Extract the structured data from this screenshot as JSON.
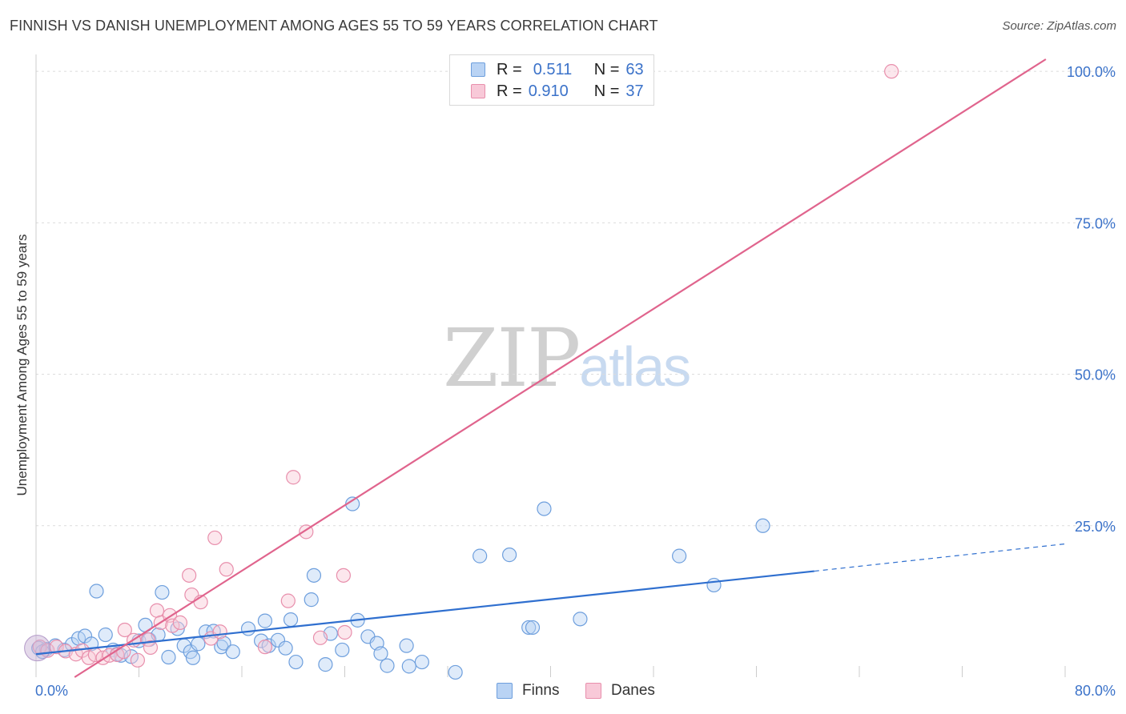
{
  "title": "FINNISH VS DANISH UNEMPLOYMENT AMONG AGES 55 TO 59 YEARS CORRELATION CHART",
  "source": "Source: ZipAtlas.com",
  "watermark": {
    "zip": "ZIP",
    "atlas": "atlas"
  },
  "legend": {
    "finns": {
      "r_label": "R =",
      "r_value": "0.511",
      "n_label": "N =",
      "n_value": "63"
    },
    "danes": {
      "r_label": "R =",
      "r_value": "0.910",
      "n_label": "N =",
      "n_value": "37"
    }
  },
  "colors": {
    "finns_fill": "#b9d3f4",
    "finns_stroke": "#6e9fdd",
    "finns_line": "#2f6fcf",
    "danes_fill": "#f8c9d8",
    "danes_stroke": "#e88fac",
    "danes_line": "#e0648d",
    "tick_label": "#3b72c9",
    "grid": "#dcdcdc"
  },
  "chart_data": {
    "type": "scatter",
    "title": "FINNISH VS DANISH UNEMPLOYMENT AMONG AGES 55 TO 59 YEARS CORRELATION CHART",
    "xlabel": "",
    "ylabel": "Unemployment Among Ages 55 to 59 years",
    "xlim": [
      0,
      80
    ],
    "ylim": [
      0,
      102
    ],
    "x_tick_labels": [
      "0.0%",
      "80.0%"
    ],
    "y_ticks": [
      25,
      50,
      75,
      100
    ],
    "y_tick_labels": [
      "25.0%",
      "50.0%",
      "75.0%",
      "100.0%"
    ],
    "grid": true,
    "legend_position": "bottom-center",
    "series": [
      {
        "name": "Finns",
        "r": 0.511,
        "n": 63,
        "trend": {
          "x0": 0,
          "y0": 3.8,
          "x1": 60.5,
          "y1": 17.5,
          "dash_to_x": 80,
          "dash_to_y": 22.0
        },
        "points": [
          [
            0.2,
            4.8
          ],
          [
            0.8,
            4.6
          ],
          [
            1.5,
            5.2
          ],
          [
            2.2,
            4.5
          ],
          [
            2.8,
            5.4
          ],
          [
            3.3,
            6.4
          ],
          [
            3.8,
            6.8
          ],
          [
            4.3,
            5.5
          ],
          [
            5.4,
            7.0
          ],
          [
            6.0,
            4.5
          ],
          [
            6.3,
            3.8
          ],
          [
            6.6,
            3.6
          ],
          [
            7.4,
            3.4
          ],
          [
            8.0,
            6.0
          ],
          [
            8.5,
            8.6
          ],
          [
            8.8,
            6.2
          ],
          [
            9.5,
            7.0
          ],
          [
            9.8,
            14.0
          ],
          [
            10.3,
            3.3
          ],
          [
            11.0,
            8.0
          ],
          [
            11.5,
            5.2
          ],
          [
            12.0,
            4.2
          ],
          [
            12.2,
            3.2
          ],
          [
            12.6,
            5.5
          ],
          [
            13.2,
            7.5
          ],
          [
            13.8,
            7.6
          ],
          [
            14.4,
            5.0
          ],
          [
            14.6,
            5.6
          ],
          [
            15.3,
            4.2
          ],
          [
            16.5,
            8.0
          ],
          [
            17.5,
            6.0
          ],
          [
            17.8,
            9.3
          ],
          [
            18.1,
            5.2
          ],
          [
            18.8,
            6.1
          ],
          [
            19.4,
            4.8
          ],
          [
            19.8,
            9.5
          ],
          [
            20.2,
            2.5
          ],
          [
            21.4,
            12.8
          ],
          [
            21.6,
            16.8
          ],
          [
            22.5,
            2.1
          ],
          [
            22.9,
            7.2
          ],
          [
            23.8,
            4.5
          ],
          [
            24.6,
            28.6
          ],
          [
            25.0,
            9.4
          ],
          [
            25.8,
            6.7
          ],
          [
            26.5,
            5.6
          ],
          [
            26.8,
            3.9
          ],
          [
            27.3,
            1.9
          ],
          [
            28.8,
            5.2
          ],
          [
            29.0,
            1.8
          ],
          [
            30.0,
            2.5
          ],
          [
            32.6,
            0.8
          ],
          [
            34.5,
            20.0
          ],
          [
            36.8,
            20.2
          ],
          [
            38.3,
            8.2
          ],
          [
            38.6,
            8.2
          ],
          [
            39.5,
            27.8
          ],
          [
            42.3,
            9.6
          ],
          [
            50.0,
            20.0
          ],
          [
            52.7,
            15.2
          ],
          [
            56.5,
            25.0
          ],
          [
            4.7,
            14.2
          ],
          [
            0.5,
            4.2
          ]
        ]
      },
      {
        "name": "Danes",
        "r": 0.91,
        "n": 37,
        "trend": {
          "x0": 3.0,
          "y0": 0,
          "x1": 78.5,
          "y1": 102
        },
        "points": [
          [
            0.3,
            5.0
          ],
          [
            0.9,
            4.4
          ],
          [
            1.6,
            5.0
          ],
          [
            2.3,
            4.3
          ],
          [
            3.1,
            3.8
          ],
          [
            3.6,
            4.4
          ],
          [
            4.1,
            3.2
          ],
          [
            4.6,
            3.7
          ],
          [
            5.2,
            3.2
          ],
          [
            5.7,
            3.6
          ],
          [
            6.3,
            3.7
          ],
          [
            6.8,
            4.2
          ],
          [
            6.9,
            7.8
          ],
          [
            7.6,
            6.1
          ],
          [
            7.9,
            2.8
          ],
          [
            8.7,
            6.2
          ],
          [
            8.9,
            4.9
          ],
          [
            9.4,
            11.0
          ],
          [
            9.7,
            9.0
          ],
          [
            10.4,
            10.2
          ],
          [
            10.6,
            8.5
          ],
          [
            11.2,
            9.0
          ],
          [
            11.9,
            16.8
          ],
          [
            12.1,
            13.6
          ],
          [
            12.8,
            12.4
          ],
          [
            13.6,
            6.4
          ],
          [
            13.9,
            23.0
          ],
          [
            14.3,
            7.5
          ],
          [
            14.8,
            17.8
          ],
          [
            17.8,
            5.0
          ],
          [
            19.6,
            12.6
          ],
          [
            20.0,
            33.0
          ],
          [
            21.0,
            24.0
          ],
          [
            22.1,
            6.5
          ],
          [
            23.9,
            16.8
          ],
          [
            66.5,
            100.0
          ],
          [
            24.0,
            7.4
          ]
        ]
      }
    ]
  },
  "bottom_legend": {
    "finns": "Finns",
    "danes": "Danes"
  }
}
